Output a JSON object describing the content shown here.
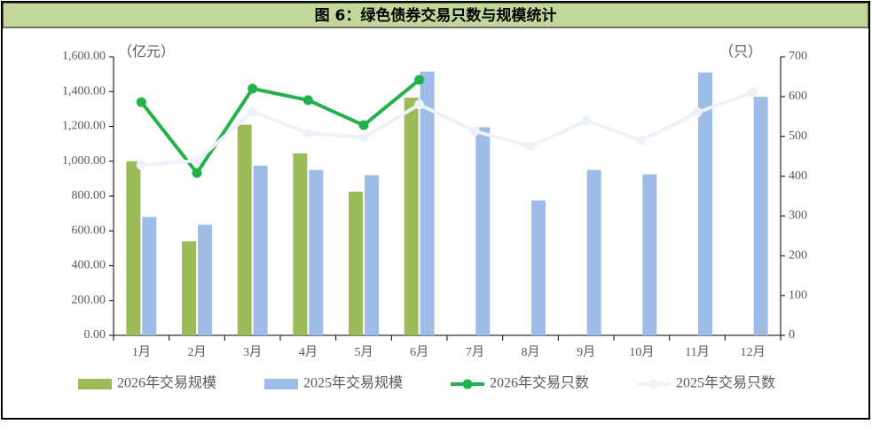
{
  "chart_data": {
    "type": "combo",
    "title": "图 6：绿色债券交易只数与规模统计",
    "y_unit": "（亿元）",
    "y2_unit": "（只）",
    "categories": [
      "1月",
      "2月",
      "3月",
      "4月",
      "5月",
      "6月",
      "7月",
      "8月",
      "9月",
      "10月",
      "11月",
      "12月"
    ],
    "series": [
      {
        "name": "2026年交易规模",
        "kind": "bar",
        "color": "#9bbb59",
        "values": [
          1000,
          540,
          1210,
          1045,
          825,
          1365,
          null,
          null,
          null,
          null,
          null,
          null
        ]
      },
      {
        "name": "2025年交易规模",
        "kind": "bar",
        "color": "#9dbde8",
        "values": [
          680,
          635,
          975,
          950,
          920,
          1515,
          1195,
          775,
          950,
          925,
          1510,
          1370
        ]
      },
      {
        "name": "2026年交易只数",
        "kind": "line",
        "axis": "y2",
        "color": "#21b24b",
        "values": [
          586,
          408,
          620,
          591,
          528,
          642,
          null,
          null,
          null,
          null,
          null,
          null
        ]
      },
      {
        "name": "2025年交易只数",
        "kind": "line",
        "axis": "y2",
        "color": "#edf2fa",
        "values": [
          428,
          439,
          562,
          508,
          497,
          580,
          513,
          475,
          539,
          490,
          560,
          611
        ]
      }
    ],
    "ylim": [
      0,
      1600
    ],
    "yticks": [
      {
        "value": 0,
        "label": "0.00"
      },
      {
        "value": 200,
        "label": "200.00"
      },
      {
        "value": 400,
        "label": "400.00"
      },
      {
        "value": 600,
        "label": "600.00"
      },
      {
        "value": 800,
        "label": "800.00"
      },
      {
        "value": 1000,
        "label": "1,000.00"
      },
      {
        "value": 1200,
        "label": "1,200.00"
      },
      {
        "value": 1400,
        "label": "1,400.00"
      },
      {
        "value": 1600,
        "label": "1,600.00"
      }
    ],
    "y2lim": [
      0,
      700
    ],
    "y2ticks": [
      0,
      100,
      200,
      300,
      400,
      500,
      600,
      700
    ],
    "legend": "bottom"
  }
}
